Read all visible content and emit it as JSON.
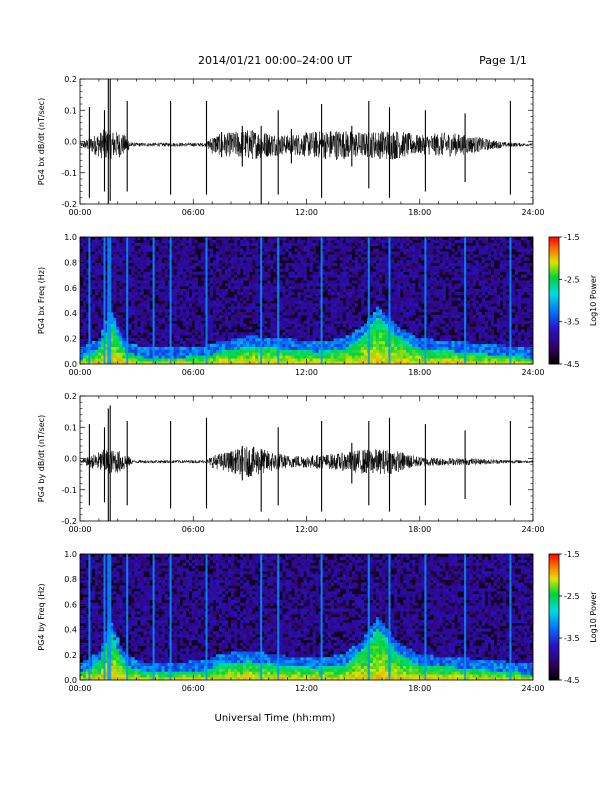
{
  "header": {
    "title": "2014/01/21  00:00–24:00 UT",
    "page": "Page 1/1"
  },
  "x_axis_title": "Universal Time (hh:mm)",
  "chart_data": [
    {
      "type": "line",
      "ylabel": "PG4 bx dB/dt (nT/sec)",
      "xlim": [
        0,
        24
      ],
      "ylim": [
        -0.2,
        0.2
      ],
      "x_ticks": [
        "00:00",
        "06:00",
        "12:00",
        "18:00",
        "24:00"
      ],
      "y_ticks": [
        "0.2",
        "0.1",
        "0.0",
        "-0.1",
        "-0.2"
      ],
      "series": [
        {
          "x_hours": [
            0.5,
            1.3,
            1.5,
            1.6,
            2.5,
            4.8,
            6.7,
            7.5,
            8.6,
            9.6,
            10.5,
            11.2,
            12.8,
            14.4,
            15.3,
            16.4,
            18.3,
            20.4,
            22.8
          ],
          "spike_max": [
            0.11,
            0.1,
            0.2,
            0.2,
            0.13,
            0.13,
            0.13,
            0.03,
            0.05,
            0.05,
            0.1,
            0.04,
            0.12,
            0.05,
            0.13,
            0.11,
            0.1,
            0.09,
            0.13
          ],
          "spike_min": [
            -0.18,
            -0.16,
            -0.21,
            -0.19,
            -0.16,
            -0.17,
            -0.17,
            -0.05,
            -0.08,
            -0.2,
            -0.17,
            -0.07,
            -0.18,
            -0.08,
            -0.15,
            -0.18,
            -0.16,
            -0.13,
            -0.17
          ]
        }
      ],
      "noise_profile": {
        "hours": [
          0,
          1.3,
          2.2,
          2.8,
          6.7,
          7.0,
          9.0,
          11.0,
          12.0,
          13.5,
          15.0,
          16.5,
          18.0,
          19.5,
          21.0,
          22.5,
          24.0
        ],
        "amplitude": [
          0.005,
          0.05,
          0.04,
          0.006,
          0.006,
          0.03,
          0.05,
          0.03,
          0.04,
          0.05,
          0.04,
          0.05,
          0.03,
          0.04,
          0.025,
          0.008,
          0.004
        ]
      }
    },
    {
      "type": "heatmap",
      "ylabel": "PG4 bx Freq (Hz)",
      "xlim": [
        0,
        24
      ],
      "ylim": [
        0,
        1.0
      ],
      "x_ticks": [
        "00:00",
        "06:00",
        "12:00",
        "18:00",
        "24:00"
      ],
      "y_ticks": [
        "1.0",
        "0.8",
        "0.6",
        "0.4",
        "0.2",
        "0.0"
      ],
      "colorbar": {
        "label": "Log10 Power",
        "min": -4.5,
        "max": -1.5,
        "ticks": [
          "-1.5",
          "-2.5",
          "-3.5",
          "-4.5"
        ]
      },
      "vertical_lines_hours": [
        0.5,
        1.3,
        1.5,
        1.6,
        2.5,
        3.9,
        4.8,
        6.7,
        9.6,
        10.5,
        12.8,
        15.3,
        16.4,
        18.3,
        20.4,
        22.8
      ],
      "activity_profile": {
        "hours": [
          0,
          1,
          1.6,
          2.4,
          3.5,
          6.5,
          7.5,
          9,
          11,
          12.5,
          14,
          15,
          15.8,
          16.8,
          18,
          20,
          21.5,
          24
        ],
        "upper_freq_hz": [
          0.05,
          0.12,
          0.35,
          0.1,
          0.05,
          0.06,
          0.1,
          0.14,
          0.12,
          0.1,
          0.12,
          0.22,
          0.38,
          0.22,
          0.12,
          0.1,
          0.08,
          0.05
        ]
      }
    },
    {
      "type": "line",
      "ylabel": "PG4 by dB/dt (nT/sec)",
      "xlim": [
        0,
        24
      ],
      "ylim": [
        -0.2,
        0.2
      ],
      "x_ticks": [
        "00:00",
        "06:00",
        "12:00",
        "18:00",
        "24:00"
      ],
      "y_ticks": [
        "0.2",
        "0.1",
        "0.0",
        "-0.1",
        "-0.2"
      ],
      "series": [
        {
          "x_hours": [
            0.5,
            1.3,
            1.5,
            1.6,
            2.5,
            4.8,
            6.7,
            8.6,
            9.6,
            10.5,
            12.8,
            14.4,
            15.3,
            16.4,
            18.3,
            20.4,
            22.8
          ],
          "spike_max": [
            0.11,
            0.1,
            0.16,
            0.17,
            0.12,
            0.12,
            0.13,
            0.04,
            0.03,
            0.1,
            0.12,
            0.05,
            0.12,
            0.13,
            0.11,
            0.09,
            0.12
          ],
          "spike_min": [
            -0.15,
            -0.14,
            -0.21,
            -0.2,
            -0.15,
            -0.16,
            -0.16,
            -0.07,
            -0.17,
            -0.15,
            -0.17,
            -0.08,
            -0.15,
            -0.17,
            -0.15,
            -0.13,
            -0.15
          ]
        }
      ],
      "noise_profile": {
        "hours": [
          0,
          1.3,
          2.2,
          2.8,
          6.7,
          7.0,
          9.0,
          11.0,
          12.0,
          13.5,
          15.0,
          16.5,
          18.0,
          19.5,
          21.0,
          22.5,
          24.0
        ],
        "amplitude": [
          0.004,
          0.04,
          0.035,
          0.005,
          0.005,
          0.02,
          0.05,
          0.02,
          0.02,
          0.025,
          0.04,
          0.04,
          0.015,
          0.012,
          0.01,
          0.006,
          0.004
        ]
      }
    },
    {
      "type": "heatmap",
      "ylabel": "PG4 by Freq (Hz)",
      "xlim": [
        0,
        24
      ],
      "ylim": [
        0,
        1.0
      ],
      "x_ticks": [
        "00:00",
        "06:00",
        "12:00",
        "18:00",
        "24:00"
      ],
      "y_ticks": [
        "1.0",
        "0.8",
        "0.6",
        "0.4",
        "0.2",
        "0.0"
      ],
      "colorbar": {
        "label": "Log10 Power",
        "min": -4.5,
        "max": -1.5,
        "ticks": [
          "-1.5",
          "-2.5",
          "-3.5",
          "-4.5"
        ]
      },
      "vertical_lines_hours": [
        0.5,
        1.3,
        1.5,
        1.6,
        2.5,
        3.9,
        4.8,
        6.7,
        9.6,
        10.5,
        12.8,
        15.3,
        16.4,
        18.3,
        20.4,
        22.8
      ],
      "activity_profile": {
        "hours": [
          0,
          1,
          1.6,
          2.4,
          3.5,
          6.5,
          7.5,
          9,
          11,
          12.5,
          14,
          15,
          15.8,
          16.8,
          18,
          20,
          21.5,
          24
        ],
        "upper_freq_hz": [
          0.05,
          0.14,
          0.4,
          0.12,
          0.06,
          0.07,
          0.13,
          0.15,
          0.11,
          0.1,
          0.12,
          0.25,
          0.42,
          0.22,
          0.12,
          0.1,
          0.08,
          0.05
        ]
      }
    }
  ]
}
